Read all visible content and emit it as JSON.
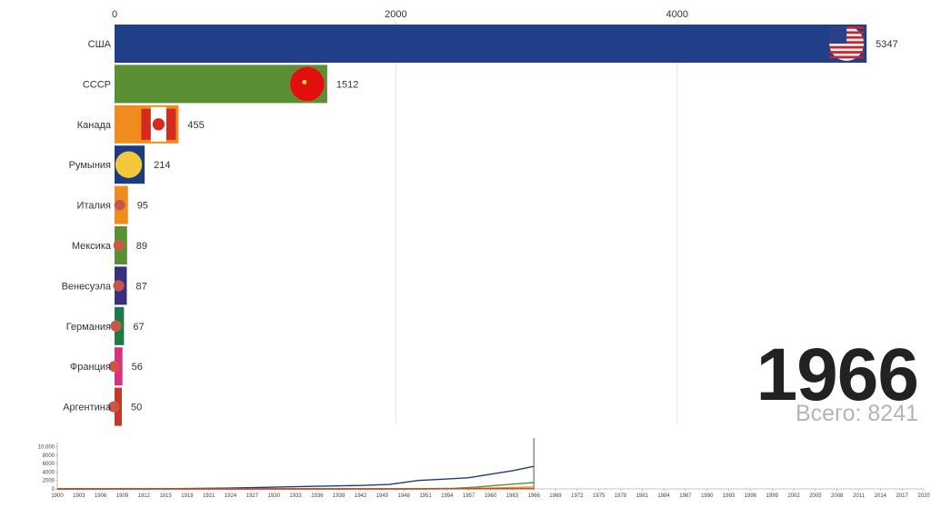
{
  "chart_data": [
    {
      "type": "bar",
      "orientation": "horizontal",
      "categories": [
        "США",
        "СССР",
        "Канада",
        "Румыния",
        "Италия",
        "Мексика",
        "Венесуэла",
        "Германия",
        "Франция",
        "Аргентина"
      ],
      "values": [
        5347,
        1512,
        455,
        214,
        95,
        89,
        87,
        67,
        56,
        50
      ],
      "colors": [
        "#213f89",
        "#5a8f34",
        "#f08c1e",
        "#1f3b80",
        "#f08c1e",
        "#5a8f34",
        "#3a2f7a",
        "#1f7a4a",
        "#d6317a",
        "#c0392b"
      ],
      "flag_icons": [
        "us-flag-icon",
        "ussr-flag-icon",
        "canada-flag-icon",
        "romania-flag-icon",
        "italy-flag-icon",
        "mexico-flag-icon",
        "venezuela-flag-icon",
        "germany-flag-icon",
        "france-flag-icon",
        "argentina-flag-icon"
      ],
      "x_ticks": [
        0,
        2000,
        4000
      ],
      "xlim": [
        0,
        6000
      ],
      "grid": true,
      "year": "1966",
      "total": "Всего: 8241"
    },
    {
      "type": "line",
      "x_ticks": [
        "1900",
        "1903",
        "1906",
        "1909",
        "1912",
        "1915",
        "1918",
        "1921",
        "1924",
        "1927",
        "1930",
        "1933",
        "1936",
        "1939",
        "1942",
        "1945",
        "1948",
        "1951",
        "1954",
        "1957",
        "1960",
        "1963",
        "1966",
        "1969",
        "1972",
        "1975",
        "1978",
        "1981",
        "1984",
        "1987",
        "1990",
        "1993",
        "1996",
        "1999",
        "2002",
        "2005",
        "2008",
        "2011",
        "2014",
        "2017",
        "2020"
      ],
      "y_ticks": [
        "10,000",
        "8000",
        "6000",
        "4000",
        "2000",
        "0"
      ],
      "ylim": [
        0,
        11000
      ],
      "xlim": [
        1900,
        2020
      ],
      "current_year": 1966,
      "series": [
        {
          "color": "#1f3b80",
          "points": [
            [
              1900,
              0
            ],
            [
              1915,
              50
            ],
            [
              1924,
              200
            ],
            [
              1930,
              420
            ],
            [
              1936,
              620
            ],
            [
              1942,
              820
            ],
            [
              1946,
              1050
            ],
            [
              1950,
              2000
            ],
            [
              1954,
              2350
            ],
            [
              1957,
              2650
            ],
            [
              1960,
              3500
            ],
            [
              1963,
              4300
            ],
            [
              1966,
              5347
            ]
          ]
        },
        {
          "color": "#5a8f34",
          "points": [
            [
              1900,
              0
            ],
            [
              1946,
              10
            ],
            [
              1950,
              40
            ],
            [
              1955,
              150
            ],
            [
              1958,
              400
            ],
            [
              1961,
              850
            ],
            [
              1964,
              1250
            ],
            [
              1966,
              1512
            ]
          ]
        },
        {
          "color": "#f08c1e",
          "points": [
            [
              1900,
              0
            ],
            [
              1950,
              5
            ],
            [
              1955,
              60
            ],
            [
              1960,
              200
            ],
            [
              1963,
              330
            ],
            [
              1966,
              455
            ]
          ]
        },
        {
          "color": "#c0392b",
          "points": [
            [
              1900,
              0
            ],
            [
              1930,
              20
            ],
            [
              1950,
              30
            ],
            [
              1960,
              40
            ],
            [
              1966,
              50
            ]
          ]
        }
      ]
    }
  ]
}
